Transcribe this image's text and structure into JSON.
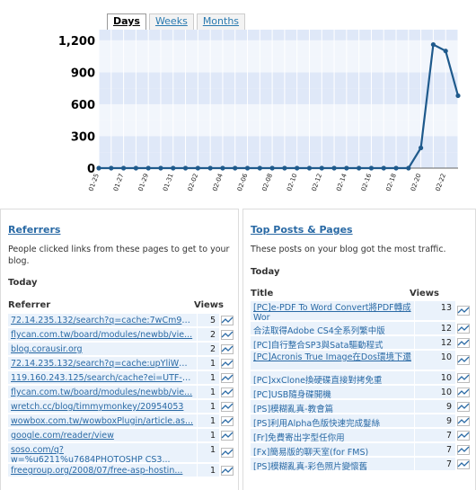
{
  "tabs": [
    {
      "label": "Days",
      "active": true
    },
    {
      "label": "Weeks",
      "active": false
    },
    {
      "label": "Months",
      "active": false
    }
  ],
  "chart_data": {
    "type": "line",
    "title": "",
    "xlabel": "",
    "ylabel": "",
    "ylim": [
      0,
      1300
    ],
    "yticks": [
      "0",
      "300",
      "600",
      "900",
      "1,200"
    ],
    "ytick_values": [
      0,
      300,
      600,
      900,
      1200
    ],
    "x_tick_labels": [
      "01-25",
      "01-27",
      "01-29",
      "01-31",
      "02-02",
      "02-04",
      "02-06",
      "02-08",
      "02-10",
      "02-12",
      "02-14",
      "02-16",
      "02-18",
      "02-20",
      "02-22"
    ],
    "x": [
      "01-25",
      "01-26",
      "01-27",
      "01-28",
      "01-29",
      "01-30",
      "01-31",
      "02-01",
      "02-02",
      "02-03",
      "02-04",
      "02-05",
      "02-06",
      "02-07",
      "02-08",
      "02-09",
      "02-10",
      "02-11",
      "02-12",
      "02-13",
      "02-14",
      "02-15",
      "02-16",
      "02-17",
      "02-18",
      "02-19",
      "02-20",
      "02-21",
      "02-22",
      "02-23"
    ],
    "series": [
      {
        "values": [
          0,
          0,
          0,
          0,
          0,
          0,
          0,
          0,
          0,
          0,
          0,
          0,
          0,
          0,
          0,
          0,
          0,
          0,
          0,
          0,
          0,
          0,
          0,
          0,
          0,
          0,
          190,
          1160,
          1100,
          680
        ]
      }
    ],
    "grid": true,
    "colors": {
      "line": "#1f5a8c",
      "band_light": "#f2f6fc",
      "band_dark": "#dfe8f8",
      "grid": "#ffffff"
    }
  },
  "referrers": {
    "title": "Referrers",
    "description": "People clicked links from these pages to get to your blog.",
    "period": "Today",
    "col_name": "Referrer",
    "col_views": "Views",
    "rows": [
      {
        "name": "72.14.235.132/search?q=cache:7wCm9aUK...",
        "views": "5"
      },
      {
        "name": "flycan.com.tw/board/modules/newbb/vie...",
        "views": "2"
      },
      {
        "name": "blog.corausir.org",
        "views": "2"
      },
      {
        "name": "72.14.235.132/search?q=cache:upYliWM...",
        "views": "1"
      },
      {
        "name": "119.160.243.125/search/cache?ei=UTF-8...",
        "views": "1"
      },
      {
        "name": "flycan.com.tw/board/modules/newbb/vie...",
        "views": "1"
      },
      {
        "name": "wretch.cc/blog/timmymonkey/20954053",
        "views": "1"
      },
      {
        "name": "wowbox.com.tw/wowboxPlugin/article.as...",
        "views": "1"
      },
      {
        "name": "google.com/reader/view",
        "views": "1"
      },
      {
        "name": "soso.com/q?w=%u6211%u7684PHOTOSHP CS3...",
        "views": "1"
      },
      {
        "name": "freegroup.org/2008/07/free-asp-hostin...",
        "views": "1"
      }
    ]
  },
  "posts": {
    "title": "Top Posts & Pages",
    "description": "These posts on your blog got the most traffic.",
    "period": "Today",
    "col_name": "Title",
    "col_views": "Views",
    "rows": [
      {
        "name": "[PC]e-PDF To Word Convert將PDF轉成Wor",
        "views": "13"
      },
      {
        "name": "合法取得Adobe CS4全系列繁中版",
        "views": "12"
      },
      {
        "name": "[PC]自行整合SP3與Sata驅動程式",
        "views": "12"
      },
      {
        "name": "[PC]Acronis True Image在Dos環境下還",
        "views": "10"
      },
      {
        "name": "[PC]xxClone換硬碟直接對拷免重",
        "views": "10"
      },
      {
        "name": "[PC]USB隨身碟開機",
        "views": "10"
      },
      {
        "name": "[PS]模糊亂真-教會篇",
        "views": "9"
      },
      {
        "name": "[PS]利用Alpha色版快速完成髮絲",
        "views": "9"
      },
      {
        "name": "[Fr]免費寄出字型任你用",
        "views": "7"
      },
      {
        "name": "[Fx]簡易版的聊天室(for FMS)",
        "views": "7"
      },
      {
        "name": "[PS]模糊亂真-彩色照片變懷舊",
        "views": "7"
      }
    ]
  },
  "icons": {
    "sparkline": "sparkline-icon"
  }
}
